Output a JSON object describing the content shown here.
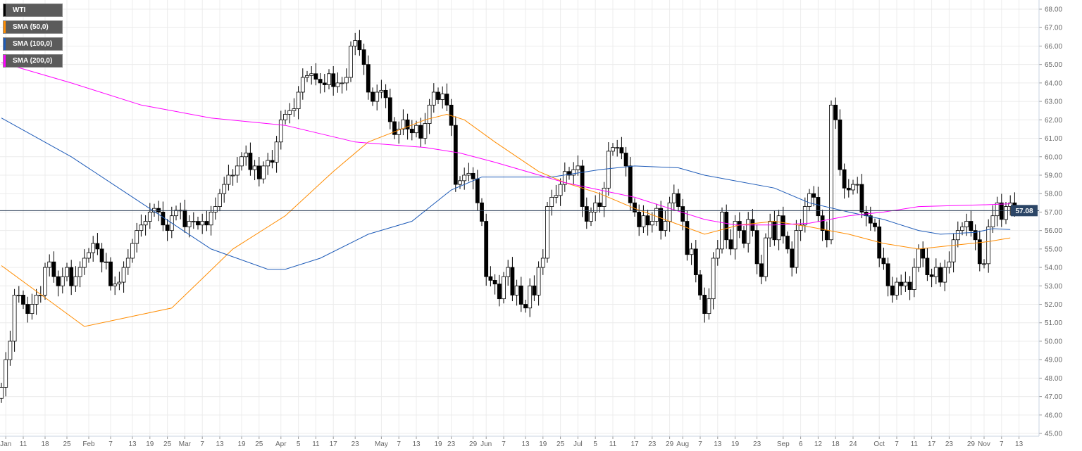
{
  "legend": [
    {
      "label": "WTI",
      "color": "#000000"
    },
    {
      "label": "SMA (50,0)",
      "color": "#ff8c00"
    },
    {
      "label": "SMA (100,0)",
      "color": "#1e5bb8"
    },
    {
      "label": "SMA (200,0)",
      "color": "#ff00ff"
    }
  ],
  "chart_data": {
    "type": "candlestick",
    "title": "",
    "ylim": [
      45,
      68
    ],
    "y_ticks": [
      "45.00",
      "46.00",
      "47.00",
      "48.00",
      "49.00",
      "50.00",
      "51.00",
      "52.00",
      "53.00",
      "54.00",
      "55.00",
      "56.00",
      "57.00",
      "58.00",
      "59.00",
      "60.00",
      "61.00",
      "62.00",
      "63.00",
      "64.00",
      "65.00",
      "66.00",
      "67.00",
      "68.00"
    ],
    "y_axis_side": "right",
    "grid": true,
    "last_price": "57.08",
    "x_ticks": [
      {
        "label": "Jan",
        "i": 1
      },
      {
        "label": "11",
        "i": 5
      },
      {
        "label": "18",
        "i": 10
      },
      {
        "label": "25",
        "i": 15
      },
      {
        "label": "Feb",
        "i": 20
      },
      {
        "label": "7",
        "i": 25
      },
      {
        "label": "13",
        "i": 30
      },
      {
        "label": "19",
        "i": 34
      },
      {
        "label": "25",
        "i": 38
      },
      {
        "label": "Mar",
        "i": 42
      },
      {
        "label": "7",
        "i": 46
      },
      {
        "label": "13",
        "i": 50
      },
      {
        "label": "19",
        "i": 55
      },
      {
        "label": "25",
        "i": 59
      },
      {
        "label": "Apr",
        "i": 64
      },
      {
        "label": "5",
        "i": 68
      },
      {
        "label": "11",
        "i": 72
      },
      {
        "label": "17",
        "i": 76
      },
      {
        "label": "23",
        "i": 81
      },
      {
        "label": "May",
        "i": 87
      },
      {
        "label": "7",
        "i": 91
      },
      {
        "label": "13",
        "i": 95
      },
      {
        "label": "19",
        "i": 100
      },
      {
        "label": "23",
        "i": 103
      },
      {
        "label": "29",
        "i": 108
      },
      {
        "label": "Jun",
        "i": 111
      },
      {
        "label": "7",
        "i": 115
      },
      {
        "label": "13",
        "i": 120
      },
      {
        "label": "19",
        "i": 124
      },
      {
        "label": "25",
        "i": 128
      },
      {
        "label": "Jul",
        "i": 132
      },
      {
        "label": "5",
        "i": 136
      },
      {
        "label": "11",
        "i": 140
      },
      {
        "label": "17",
        "i": 145
      },
      {
        "label": "23",
        "i": 149
      },
      {
        "label": "29",
        "i": 153
      },
      {
        "label": "Aug",
        "i": 156
      },
      {
        "label": "7",
        "i": 160
      },
      {
        "label": "13",
        "i": 164
      },
      {
        "label": "19",
        "i": 168
      },
      {
        "label": "23",
        "i": 173
      },
      {
        "label": "Sep",
        "i": 179
      },
      {
        "label": "6",
        "i": 183
      },
      {
        "label": "12",
        "i": 187
      },
      {
        "label": "18",
        "i": 191
      },
      {
        "label": "24",
        "i": 195
      },
      {
        "label": "Oct",
        "i": 201
      },
      {
        "label": "7",
        "i": 205
      },
      {
        "label": "11",
        "i": 209
      },
      {
        "label": "17",
        "i": 213
      },
      {
        "label": "23",
        "i": 217
      },
      {
        "label": "29",
        "i": 222
      },
      {
        "label": "Nov",
        "i": 225
      },
      {
        "label": "7",
        "i": 229
      },
      {
        "label": "13",
        "i": 233
      }
    ],
    "close": [
      47.5,
      49,
      50,
      52.5,
      52.5,
      52,
      51.5,
      52,
      52.5,
      52.5,
      54,
      54.3,
      53.5,
      53,
      53.5,
      54,
      53,
      53.5,
      54,
      54.5,
      54.8,
      55.3,
      55,
      54.3,
      54.3,
      53,
      53.1,
      53.2,
      54,
      54.5,
      55.3,
      56,
      56.3,
      56.5,
      57,
      57.2,
      57,
      56.3,
      56,
      56.8,
      57.1,
      57.1,
      56.2,
      56.5,
      56.5,
      56.3,
      56.5,
      56.3,
      57,
      57.3,
      58,
      58.5,
      59,
      59,
      59.5,
      60,
      60.2,
      59.3,
      59.5,
      58.8,
      59.5,
      59.8,
      59.7,
      60.8,
      62,
      62.3,
      62.5,
      62.6,
      63.5,
      64.3,
      64.4,
      64.5,
      64.2,
      64,
      63.9,
      64.5,
      63.8,
      64,
      64,
      64.3,
      66,
      66.3,
      65.8,
      65,
      63.5,
      63,
      63.5,
      63.6,
      63.2,
      61.9,
      61.2,
      61.5,
      62,
      61.5,
      61.3,
      61.7,
      61,
      61.8,
      62.8,
      63.5,
      63.1,
      63.4,
      62.8,
      61.7,
      58.5,
      58.7,
      59,
      59.1,
      58.8,
      57.5,
      56.5,
      53.5,
      53.3,
      53.1,
      52.3,
      53.5,
      54,
      52.5,
      53,
      52,
      51.8,
      53,
      52.5,
      54,
      54.5,
      57.3,
      57.8,
      57.9,
      58.5,
      59.2,
      59,
      59.3,
      59.5,
      57.3,
      56.5,
      57,
      57.5,
      57.3,
      58.3,
      60.3,
      60.5,
      60.5,
      60.2,
      59.5,
      57.5,
      57,
      56.2,
      56.8,
      56.3,
      56.5,
      57.2,
      56,
      56.5,
      57.5,
      58,
      57.3,
      56.5,
      54.7,
      55,
      53.6,
      52.5,
      51.5,
      52.3,
      54.5,
      55,
      57,
      55.5,
      55,
      56.5,
      56,
      55.3,
      56.6,
      56,
      54.2,
      53.5,
      55.6,
      56.5,
      55.5,
      56.8,
      55.7,
      55,
      54,
      56,
      56.3,
      57.3,
      58,
      57.8,
      56.8,
      56,
      55.5,
      62.8,
      62,
      59.3,
      58.3,
      58.2,
      58.5,
      58.5,
      57,
      56.8,
      56.4,
      56.2,
      54.5,
      54.2,
      53,
      52.5,
      53.2,
      53,
      53.2,
      52.8,
      54,
      55,
      54.5,
      53.6,
      53.5,
      54,
      53.2,
      54,
      54.3,
      55.5,
      56,
      56.2,
      56.5,
      56,
      55.5,
      54.2,
      54.2,
      56.2,
      56.8,
      57.5,
      56.6,
      57.3,
      57.5,
      57.08
    ],
    "series": [
      {
        "name": "SMA (50,0)",
        "color": "#ff8c00",
        "points": [
          [
            0,
            54.1
          ],
          [
            19,
            50.8
          ],
          [
            39,
            51.8
          ],
          [
            53,
            55
          ],
          [
            65,
            56.8
          ],
          [
            76,
            59.2
          ],
          [
            84,
            60.8
          ],
          [
            97,
            62
          ],
          [
            102,
            62.3
          ],
          [
            106,
            62
          ],
          [
            113,
            60.8
          ],
          [
            123,
            59.2
          ],
          [
            129,
            58.6
          ],
          [
            137,
            58
          ],
          [
            145,
            57.2
          ],
          [
            153,
            56.5
          ],
          [
            161,
            55.8
          ],
          [
            169,
            56.3
          ],
          [
            177,
            56.5
          ],
          [
            185,
            56.2
          ],
          [
            194,
            55.8
          ],
          [
            202,
            55.3
          ],
          [
            210,
            55
          ],
          [
            218,
            55.2
          ],
          [
            226,
            55.4
          ],
          [
            231,
            55.6
          ]
        ]
      },
      {
        "name": "SMA (100,0)",
        "color": "#1e5bb8",
        "points": [
          [
            0,
            62.1
          ],
          [
            16,
            60
          ],
          [
            32,
            57.5
          ],
          [
            48,
            55
          ],
          [
            61,
            53.9
          ],
          [
            65,
            53.9
          ],
          [
            73,
            54.5
          ],
          [
            84,
            55.8
          ],
          [
            94,
            56.5
          ],
          [
            103,
            58.2
          ],
          [
            110,
            58.9
          ],
          [
            126,
            58.9
          ],
          [
            137,
            59.3
          ],
          [
            145,
            59.5
          ],
          [
            155,
            59.4
          ],
          [
            161,
            59
          ],
          [
            177,
            58.3
          ],
          [
            185,
            57.5
          ],
          [
            194,
            57
          ],
          [
            202,
            56.6
          ],
          [
            210,
            56
          ],
          [
            215,
            55.8
          ],
          [
            223,
            55.9
          ],
          [
            227,
            56.1
          ],
          [
            231,
            56.05
          ]
        ]
      },
      {
        "name": "SMA (200,0)",
        "color": "#ff00ff",
        "points": [
          [
            0,
            65.1
          ],
          [
            16,
            64
          ],
          [
            32,
            62.8
          ],
          [
            48,
            62.1
          ],
          [
            65,
            61.7
          ],
          [
            81,
            60.8
          ],
          [
            97,
            60.5
          ],
          [
            105,
            60.2
          ],
          [
            113,
            59.7
          ],
          [
            129,
            58.6
          ],
          [
            145,
            57.8
          ],
          [
            153,
            57.2
          ],
          [
            161,
            56.6
          ],
          [
            168,
            56.3
          ],
          [
            177,
            56.3
          ],
          [
            185,
            56.4
          ],
          [
            194,
            56.8
          ],
          [
            202,
            57
          ],
          [
            210,
            57.3
          ],
          [
            226,
            57.4
          ],
          [
            231,
            57.45
          ]
        ]
      }
    ]
  }
}
